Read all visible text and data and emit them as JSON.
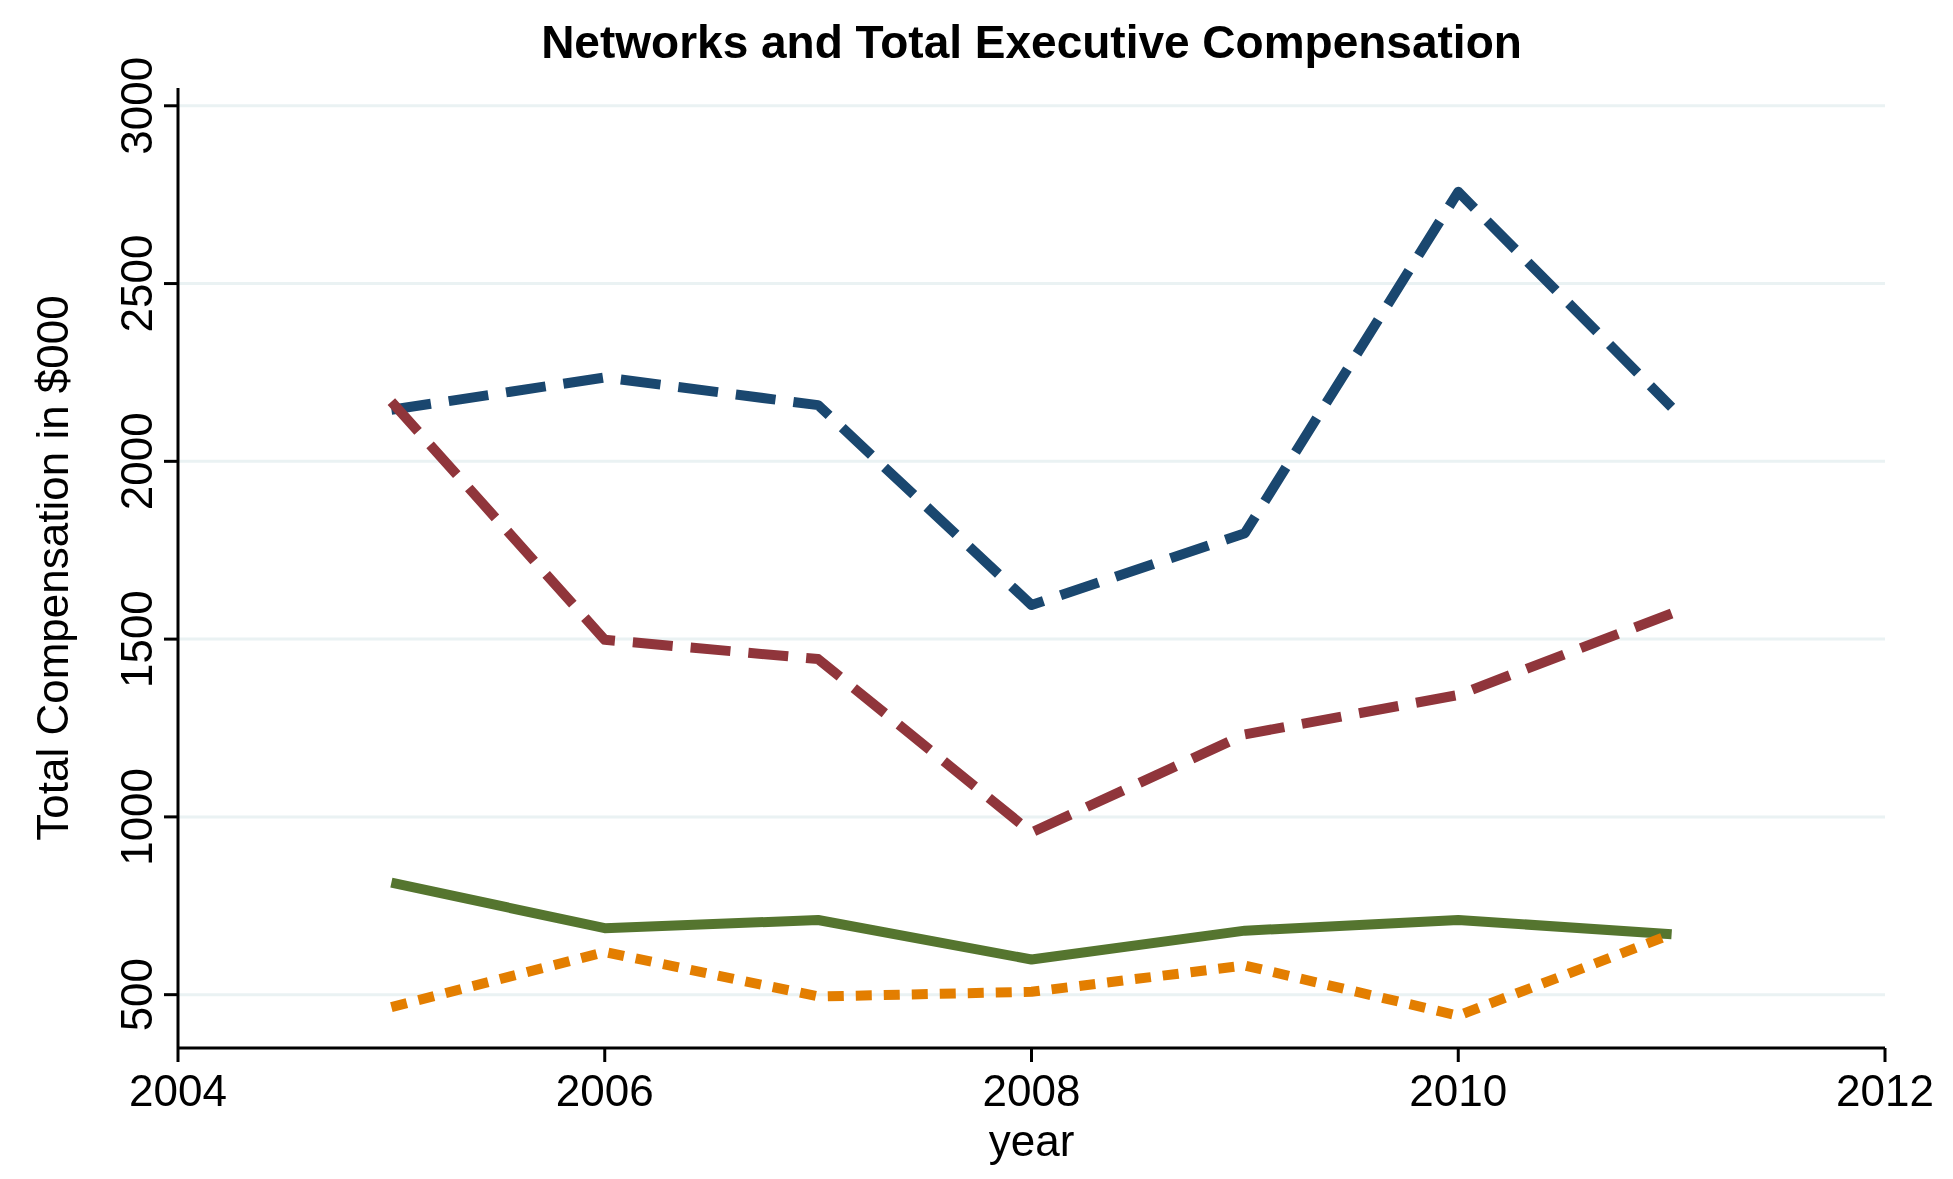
{
  "chart_data": {
    "type": "line",
    "title": "Networks and Total Executive Compensation",
    "xlabel": "year",
    "ylabel": "Total Compensation in $000",
    "x": [
      2005,
      2006,
      2007,
      2008,
      2009,
      2010,
      2011
    ],
    "series": [
      {
        "color": "#1a476f",
        "line_style": "dashed",
        "values": [
          2145,
          2236,
          2158,
          1596,
          1798,
          2758,
          2152
        ]
      },
      {
        "color": "#90353b",
        "line_style": "dashed",
        "values": [
          2168,
          1498,
          1444,
          956,
          1232,
          1343,
          1572
        ]
      },
      {
        "color": "#55752f",
        "line_style": "solid",
        "values": [
          815,
          687,
          710,
          599,
          680,
          710,
          670
        ]
      },
      {
        "color": "#e37e00",
        "line_style": "dotted",
        "values": [
          465,
          620,
          495,
          508,
          582,
          441,
          670
        ]
      }
    ],
    "xlim": [
      2004,
      2012
    ],
    "xticks": [
      2004,
      2006,
      2008,
      2010,
      2012
    ],
    "ylim": [
      350,
      3050
    ],
    "yticks": [
      500,
      1000,
      1500,
      2000,
      2500,
      3000
    ],
    "grid": "y"
  }
}
